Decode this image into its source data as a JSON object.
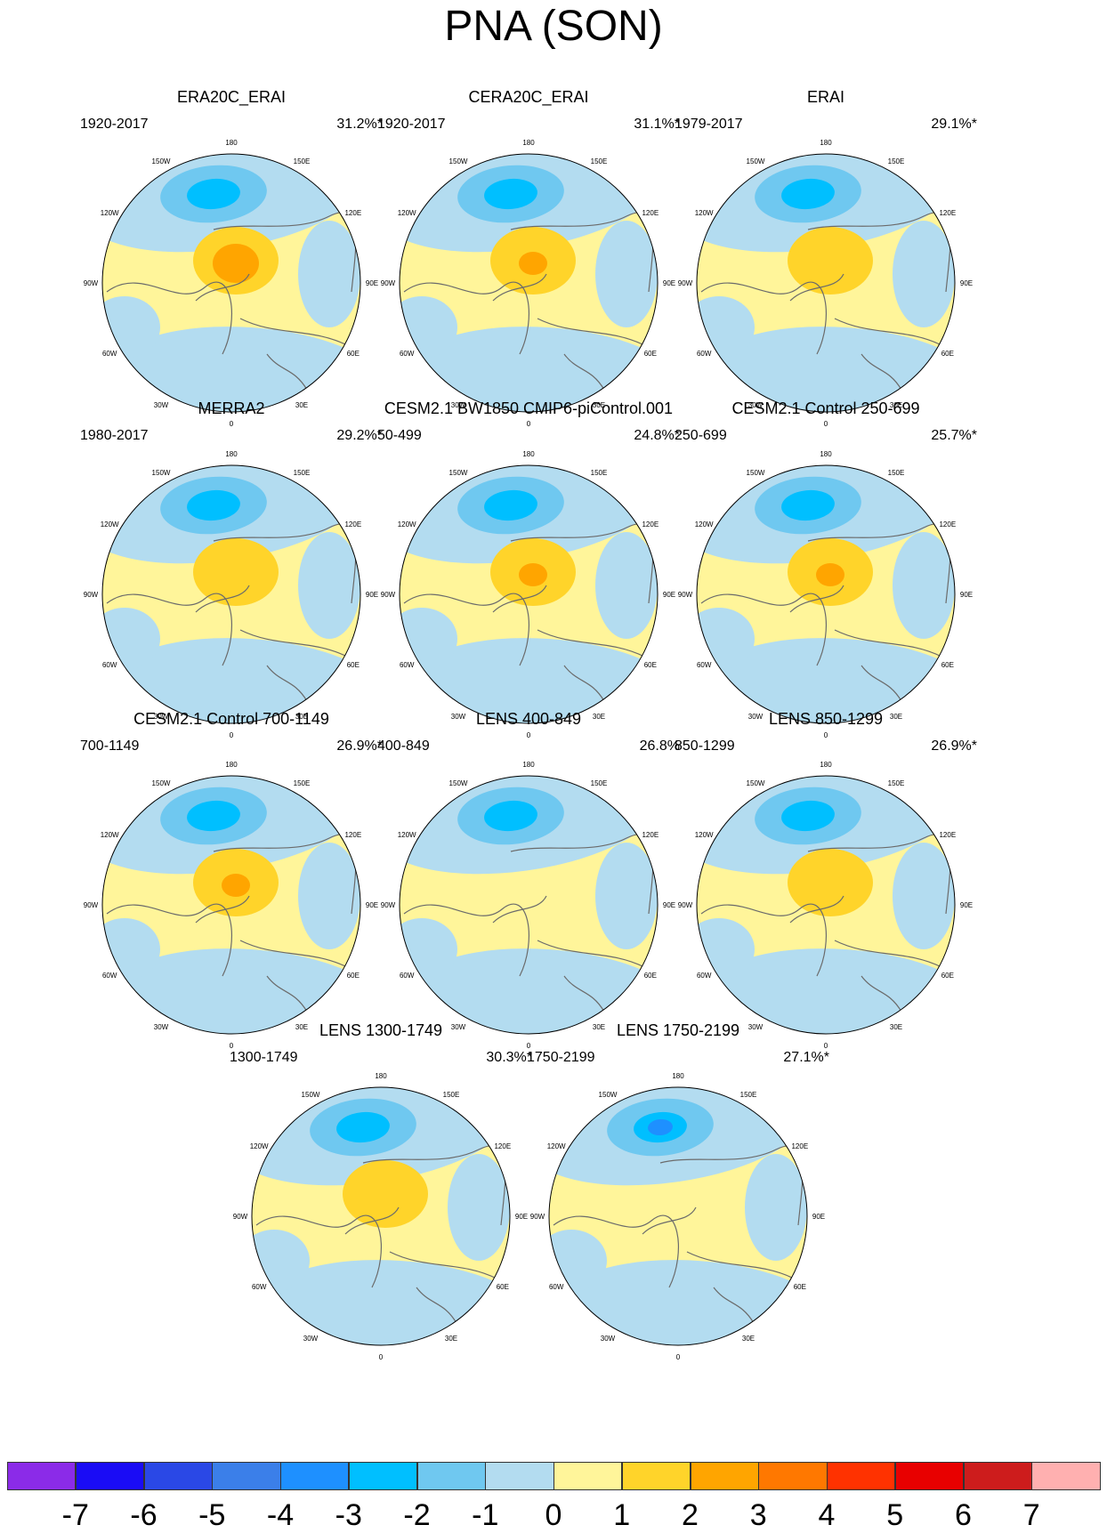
{
  "title": "PNA (SON)",
  "longitude_labels": [
    "180",
    "150E",
    "120E",
    "90E",
    "60E",
    "30E",
    "0",
    "30W",
    "60W",
    "90W",
    "120W",
    "150W"
  ],
  "panels": [
    {
      "title": "ERA20C_ERAI",
      "years": "1920-2017",
      "pct": "31.2%*",
      "anom_centers": {
        "pacific_low": -3,
        "arctic_high": 3
      }
    },
    {
      "title": "CERA20C_ERAI",
      "years": "1920-2017",
      "pct": "31.1%*",
      "anom_centers": {
        "pacific_low": -3,
        "arctic_high": 2
      }
    },
    {
      "title": "ERAI",
      "years": "1979-2017",
      "pct": "29.1%*",
      "anom_centers": {
        "pacific_low": -3,
        "arctic_high": 1
      }
    },
    {
      "title": "MERRA2",
      "years": "1980-2017",
      "pct": "29.2%*",
      "anom_centers": {
        "pacific_low": -3,
        "arctic_high": 1
      }
    },
    {
      "title": "CESM2.1 BW1850 CMIP6-piControl.001",
      "years": "50-499",
      "pct": "24.8%*",
      "anom_centers": {
        "pacific_low": -3,
        "arctic_high": 2
      }
    },
    {
      "title": "CESM2.1 Control 250-699",
      "years": "250-699",
      "pct": "25.7%*",
      "anom_centers": {
        "pacific_low": -3,
        "arctic_high": 2
      }
    },
    {
      "title": "CESM2.1 Control 700-1149",
      "years": "700-1149",
      "pct": "26.9%*",
      "anom_centers": {
        "pacific_low": -3,
        "arctic_high": 2
      }
    },
    {
      "title": "LENS 400-849",
      "years": "400-849",
      "pct": "26.8%",
      "anom_centers": {
        "pacific_low": -3,
        "arctic_high": 0
      }
    },
    {
      "title": "LENS 850-1299",
      "years": "850-1299",
      "pct": "26.9%*",
      "anom_centers": {
        "pacific_low": -3,
        "arctic_high": 1
      }
    },
    {
      "title": "LENS 1300-1749",
      "years": "1300-1749",
      "pct": "30.3%*",
      "anom_centers": {
        "pacific_low": -3,
        "arctic_high": 1
      }
    },
    {
      "title": "LENS 1750-2199",
      "years": "1750-2199",
      "pct": "27.1%*",
      "anom_centers": {
        "pacific_low": -4,
        "arctic_high": 0
      }
    }
  ],
  "colorbar": {
    "labels": [
      "-7",
      "-6",
      "-5",
      "-4",
      "-3",
      "-2",
      "-1",
      "0",
      "1",
      "2",
      "3",
      "4",
      "5",
      "6",
      "7"
    ],
    "colors": [
      "#8b2be8",
      "#1a0cf5",
      "#2a48e6",
      "#3b7fe9",
      "#1e90ff",
      "#00bfff",
      "#6fc8f0",
      "#b3dcf0",
      "#fff59a",
      "#ffd42a",
      "#ffa500",
      "#ff7800",
      "#ff3200",
      "#e80000",
      "#cd1c1c",
      "#ffb0b0"
    ]
  },
  "palette": {
    "ocean_neg": "#b3dcf0",
    "pos_light": "#fff59a",
    "neg2": "#6fc8f0",
    "neg3": "#00bfff",
    "neg4": "#1e90ff",
    "pos2": "#ffd42a",
    "pos3": "#ffa500",
    "coast": "#6b6b6b"
  }
}
